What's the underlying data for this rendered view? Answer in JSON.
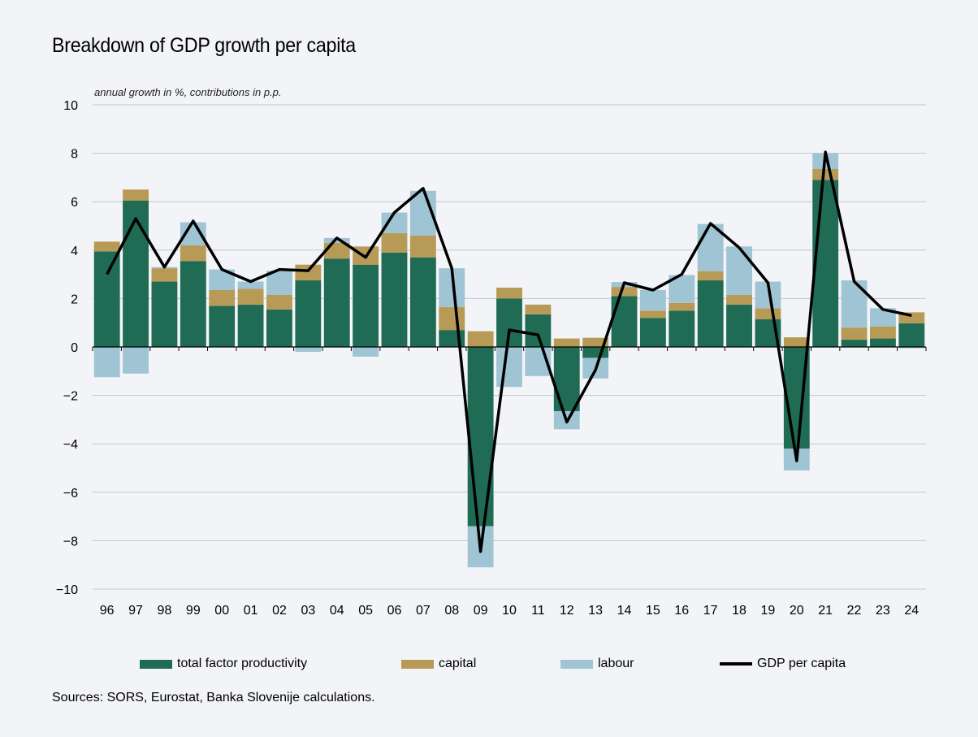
{
  "title": "Breakdown of GDP growth per capita",
  "subtitle": "annual growth in %, contributions in p.p.",
  "source": "Sources: SORS, Eurostat, Banka Slovenije calculations.",
  "legend": {
    "tfp": "total factor productivity",
    "capital": "capital",
    "labour": "labour",
    "gdp": "GDP per capita"
  },
  "colors": {
    "tfp": "#1f6b54",
    "capital": "#b89a57",
    "labour": "#9fc4d3",
    "gdp": "#000000",
    "grid": "#c3c6cc",
    "axis": "#000000"
  },
  "chart_data": {
    "type": "bar",
    "stacked": true,
    "categories": [
      "96",
      "97",
      "98",
      "99",
      "00",
      "01",
      "02",
      "03",
      "04",
      "05",
      "06",
      "07",
      "08",
      "09",
      "10",
      "11",
      "12",
      "13",
      "14",
      "15",
      "16",
      "17",
      "18",
      "19",
      "20",
      "21",
      "22",
      "23",
      "24"
    ],
    "ylim": [
      -10,
      10
    ],
    "yticks": [
      -10,
      -8,
      -6,
      -4,
      -2,
      0,
      2,
      4,
      6,
      8,
      10
    ],
    "ytick_labels": [
      "−10",
      "−8",
      "−6",
      "−4",
      "−2",
      "0",
      "2",
      "4",
      "6",
      "8",
      "10"
    ],
    "grid": true,
    "legend_position": "bottom",
    "series": [
      {
        "name": "total factor productivity",
        "kind": "bar",
        "values": [
          3.95,
          6.05,
          2.7,
          3.55,
          1.7,
          1.75,
          1.55,
          2.75,
          3.65,
          3.4,
          3.9,
          3.7,
          0.7,
          -7.4,
          2.0,
          1.35,
          -2.65,
          -0.45,
          2.1,
          1.2,
          1.5,
          2.75,
          1.75,
          1.15,
          -4.2,
          6.9,
          0.3,
          0.35,
          0.98
        ]
      },
      {
        "name": "capital",
        "kind": "bar",
        "values": [
          0.4,
          0.45,
          0.55,
          0.65,
          0.65,
          0.65,
          0.6,
          0.65,
          0.65,
          0.75,
          0.8,
          0.9,
          0.95,
          0.65,
          0.45,
          0.4,
          0.35,
          0.38,
          0.38,
          0.3,
          0.32,
          0.38,
          0.4,
          0.45,
          0.4,
          0.45,
          0.5,
          0.5,
          0.45
        ]
      },
      {
        "name": "labour",
        "kind": "bar",
        "values": [
          -1.25,
          -1.1,
          0.05,
          0.95,
          0.85,
          0.3,
          1.0,
          -0.2,
          0.2,
          -0.4,
          0.85,
          1.85,
          1.6,
          -1.7,
          -1.65,
          -1.2,
          -0.75,
          -0.85,
          0.2,
          0.85,
          1.15,
          1.95,
          2.0,
          1.1,
          -0.9,
          0.65,
          1.95,
          0.75,
          -0.05
        ]
      },
      {
        "name": "GDP per capita",
        "kind": "line",
        "values": [
          3.0,
          5.3,
          3.3,
          5.2,
          3.2,
          2.7,
          3.2,
          3.15,
          4.5,
          3.7,
          5.55,
          6.55,
          3.25,
          -8.45,
          0.7,
          0.5,
          -3.1,
          -0.95,
          2.65,
          2.35,
          3.0,
          5.1,
          4.1,
          2.65,
          -4.7,
          8.05,
          2.7,
          1.55,
          1.3
        ]
      }
    ]
  }
}
